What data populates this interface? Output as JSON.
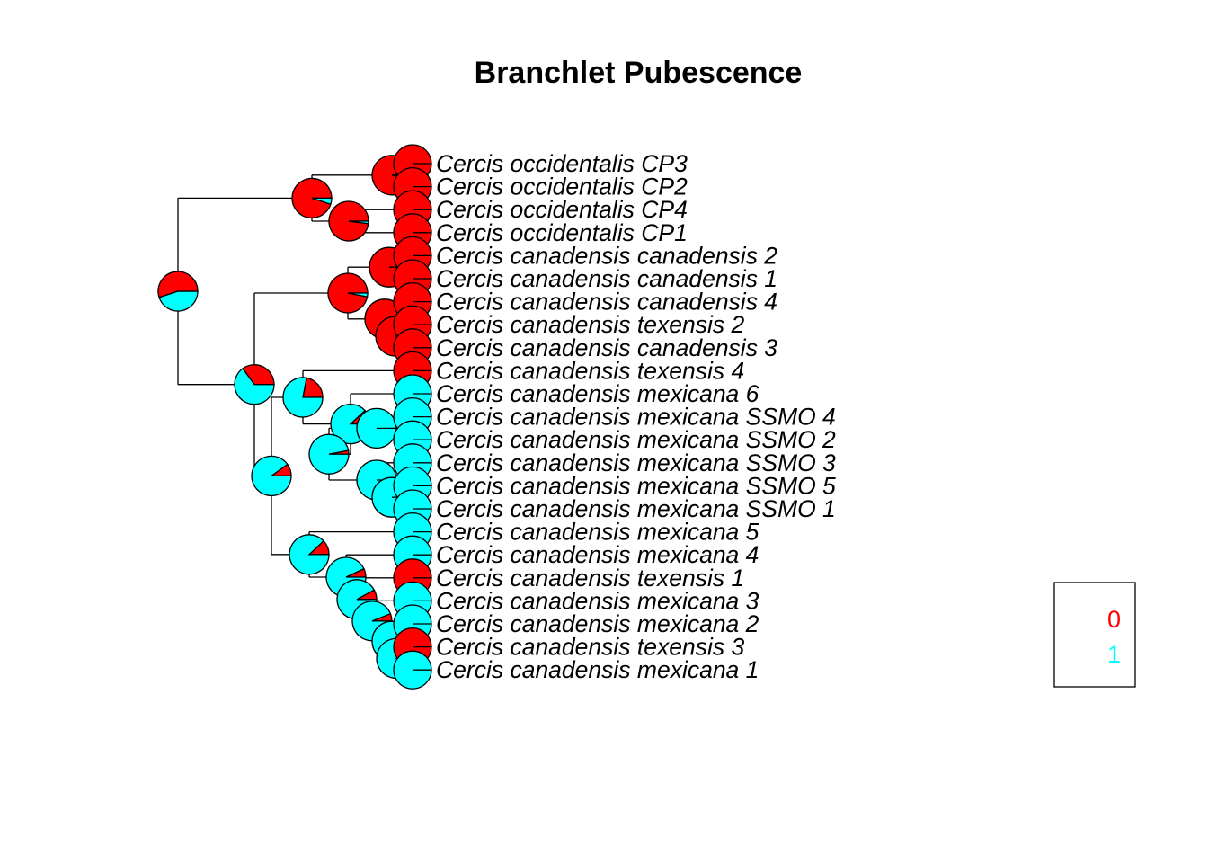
{
  "title": "Branchlet Pubescence",
  "colors": {
    "state_0": "#ff0000",
    "state_1": "#00ffff"
  },
  "legend": {
    "items": [
      {
        "label": "0",
        "color": "#ff0000"
      },
      {
        "label": "1",
        "color": "#00ffff"
      }
    ]
  },
  "tips": [
    {
      "label": "Cercis occidentalis CP3",
      "state": "0"
    },
    {
      "label": "Cercis occidentalis CP2",
      "state": "0"
    },
    {
      "label": "Cercis occidentalis CP4",
      "state": "0"
    },
    {
      "label": "Cercis occidentalis CP1",
      "state": "0"
    },
    {
      "label": "Cercis canadensis canadensis 2",
      "state": "0"
    },
    {
      "label": "Cercis canadensis canadensis 1",
      "state": "0"
    },
    {
      "label": "Cercis canadensis canadensis 4",
      "state": "0"
    },
    {
      "label": "Cercis canadensis texensis 2",
      "state": "0"
    },
    {
      "label": "Cercis canadensis canadensis 3",
      "state": "0"
    },
    {
      "label": "Cercis canadensis texensis 4",
      "state": "0"
    },
    {
      "label": "Cercis canadensis mexicana 6",
      "state": "1"
    },
    {
      "label": "Cercis canadensis mexicana SSMO 4",
      "state": "1"
    },
    {
      "label": "Cercis canadensis mexicana SSMO 2",
      "state": "1"
    },
    {
      "label": "Cercis canadensis mexicana SSMO 3",
      "state": "1"
    },
    {
      "label": "Cercis canadensis mexicana SSMO 5",
      "state": "1"
    },
    {
      "label": "Cercis canadensis mexicana SSMO 1",
      "state": "1"
    },
    {
      "label": "Cercis canadensis mexicana 5",
      "state": "1"
    },
    {
      "label": "Cercis canadensis mexicana 4",
      "state": "1"
    },
    {
      "label": "Cercis canadensis texensis 1",
      "state": "0"
    },
    {
      "label": "Cercis canadensis mexicana 3",
      "state": "1"
    },
    {
      "label": "Cercis canadensis mexicana 2",
      "state": "1"
    },
    {
      "label": "Cercis canadensis texensis 3",
      "state": "0"
    },
    {
      "label": "Cercis canadensis mexicana 1",
      "state": "1"
    }
  ],
  "internal_nodes": [
    {
      "id": "root",
      "p_state_0": 0.55
    },
    {
      "id": "occidentalis",
      "p_state_0": 0.95
    },
    {
      "id": "occ-a",
      "p_state_0": 0.99
    },
    {
      "id": "occ-b",
      "p_state_0": 0.98
    },
    {
      "id": "canadensis-mexicana",
      "p_state_0": 0.35
    },
    {
      "id": "canadensis",
      "p_state_0": 0.97
    },
    {
      "id": "can-a",
      "p_state_0": 1.0
    },
    {
      "id": "can-b",
      "p_state_0": 1.0
    },
    {
      "id": "can-c",
      "p_state_0": 1.0
    },
    {
      "id": "mexicana",
      "p_state_0": 0.1
    },
    {
      "id": "mex-6-tex-4",
      "p_state_0": 0.22
    },
    {
      "id": "ssmo",
      "p_state_0": 0.12
    },
    {
      "id": "ssmo-a",
      "p_state_0": 0.03
    },
    {
      "id": "ssmo-b",
      "p_state_0": 0.0
    },
    {
      "id": "ssmo-c",
      "p_state_0": 0.0
    },
    {
      "id": "mex-lower",
      "p_state_0": 0.12
    },
    {
      "id": "mex-lower-a",
      "p_state_0": 0.07
    },
    {
      "id": "mex-lower-b",
      "p_state_0": 0.08
    },
    {
      "id": "mex-lower-c",
      "p_state_0": 0.06
    },
    {
      "id": "mex-lower-d",
      "p_state_0": 0.0
    },
    {
      "id": "mex-lower-e",
      "p_state_0": 0.1
    }
  ]
}
